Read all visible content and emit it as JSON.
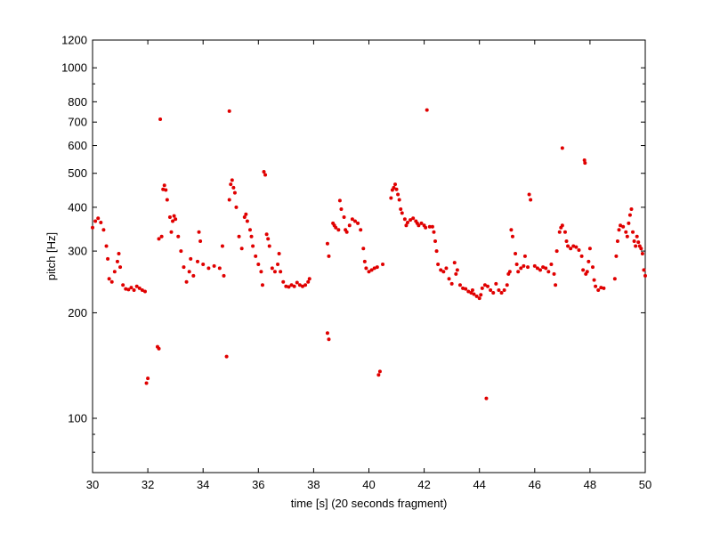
{
  "chart_data": {
    "type": "scatter",
    "title": "",
    "xlabel": "time [s] (20 seconds fragment)",
    "ylabel": "pitch [Hz]",
    "xlim": [
      30,
      50
    ],
    "ylim": [
      70,
      1200
    ],
    "y_scale": "log",
    "grid": false,
    "marker_color": "#e00000",
    "x_ticks": [
      30,
      32,
      34,
      36,
      38,
      40,
      42,
      44,
      46,
      48,
      50
    ],
    "x_tick_labels": [
      "30",
      "32",
      "34",
      "36",
      "38",
      "40",
      "42",
      "44",
      "46",
      "48",
      "50"
    ],
    "y_ticks": [
      100,
      200,
      300,
      400,
      500,
      600,
      700,
      800,
      1000,
      1200
    ],
    "y_tick_labels": [
      "100",
      "200",
      "300",
      "400",
      "500",
      "600",
      "700",
      "800",
      "1000",
      "1200"
    ],
    "series": [
      {
        "values": [
          [
            30.0,
            350
          ],
          [
            30.1,
            365
          ],
          [
            30.2,
            372
          ],
          [
            30.3,
            362
          ],
          [
            30.4,
            345
          ],
          [
            30.5,
            310
          ],
          [
            30.55,
            285
          ],
          [
            30.6,
            250
          ],
          [
            30.7,
            245
          ],
          [
            30.8,
            262
          ],
          [
            30.9,
            280
          ],
          [
            30.95,
            295
          ],
          [
            31.0,
            270
          ],
          [
            31.1,
            240
          ],
          [
            31.2,
            234
          ],
          [
            31.3,
            233
          ],
          [
            31.4,
            236
          ],
          [
            31.5,
            232
          ],
          [
            31.6,
            238
          ],
          [
            31.7,
            235
          ],
          [
            31.8,
            232
          ],
          [
            31.9,
            230
          ],
          [
            31.95,
            126
          ],
          [
            32.0,
            130
          ],
          [
            32.35,
            160
          ],
          [
            32.4,
            158
          ],
          [
            32.4,
            325
          ],
          [
            32.5,
            330
          ],
          [
            32.55,
            450
          ],
          [
            32.6,
            462
          ],
          [
            32.65,
            448
          ],
          [
            32.7,
            420
          ],
          [
            32.8,
            375
          ],
          [
            32.85,
            340
          ],
          [
            32.9,
            365
          ],
          [
            32.95,
            378
          ],
          [
            33.0,
            370
          ],
          [
            33.1,
            330
          ],
          [
            33.2,
            300
          ],
          [
            33.3,
            270
          ],
          [
            33.4,
            245
          ],
          [
            33.5,
            262
          ],
          [
            33.55,
            285
          ],
          [
            33.65,
            255
          ],
          [
            33.8,
            280
          ],
          [
            33.85,
            340
          ],
          [
            33.9,
            320
          ],
          [
            34.0,
            275
          ],
          [
            34.2,
            268
          ],
          [
            34.4,
            272
          ],
          [
            34.6,
            268
          ],
          [
            34.7,
            310
          ],
          [
            34.75,
            255
          ],
          [
            34.85,
            150
          ],
          [
            34.95,
            752
          ],
          [
            34.95,
            420
          ],
          [
            35.0,
            465
          ],
          [
            35.05,
            478
          ],
          [
            35.1,
            455
          ],
          [
            35.15,
            440
          ],
          [
            35.2,
            400
          ],
          [
            35.3,
            330
          ],
          [
            35.4,
            305
          ],
          [
            35.5,
            375
          ],
          [
            35.55,
            382
          ],
          [
            35.6,
            365
          ],
          [
            35.7,
            345
          ],
          [
            35.75,
            330
          ],
          [
            35.8,
            310
          ],
          [
            35.9,
            290
          ],
          [
            36.0,
            275
          ],
          [
            36.1,
            262
          ],
          [
            36.15,
            240
          ],
          [
            36.2,
            505
          ],
          [
            36.25,
            495
          ],
          [
            36.3,
            335
          ],
          [
            36.35,
            325
          ],
          [
            36.4,
            310
          ],
          [
            36.5,
            268
          ],
          [
            36.6,
            262
          ],
          [
            36.7,
            275
          ],
          [
            36.75,
            295
          ],
          [
            36.8,
            262
          ],
          [
            36.9,
            245
          ],
          [
            37.0,
            238
          ],
          [
            37.1,
            237
          ],
          [
            37.2,
            240
          ],
          [
            37.3,
            238
          ],
          [
            37.4,
            244
          ],
          [
            37.5,
            240
          ],
          [
            37.6,
            238
          ],
          [
            37.7,
            240
          ],
          [
            37.8,
            245
          ],
          [
            37.85,
            250
          ],
          [
            38.5,
            175
          ],
          [
            38.55,
            168
          ],
          [
            38.5,
            315
          ],
          [
            38.55,
            290
          ],
          [
            38.7,
            360
          ],
          [
            38.75,
            355
          ],
          [
            38.8,
            350
          ],
          [
            38.9,
            345
          ],
          [
            38.95,
            418
          ],
          [
            39.0,
            395
          ],
          [
            39.1,
            375
          ],
          [
            39.15,
            345
          ],
          [
            39.2,
            340
          ],
          [
            39.3,
            355
          ],
          [
            39.4,
            370
          ],
          [
            39.5,
            365
          ],
          [
            39.6,
            360
          ],
          [
            39.7,
            345
          ],
          [
            39.8,
            305
          ],
          [
            39.85,
            280
          ],
          [
            39.9,
            268
          ],
          [
            40.0,
            262
          ],
          [
            40.1,
            265
          ],
          [
            40.2,
            268
          ],
          [
            40.3,
            270
          ],
          [
            40.35,
            133
          ],
          [
            40.4,
            136
          ],
          [
            40.5,
            275
          ],
          [
            40.8,
            425
          ],
          [
            40.85,
            448
          ],
          [
            40.9,
            455
          ],
          [
            40.95,
            465
          ],
          [
            41.0,
            450
          ],
          [
            41.05,
            435
          ],
          [
            41.1,
            420
          ],
          [
            41.15,
            395
          ],
          [
            41.2,
            385
          ],
          [
            41.3,
            370
          ],
          [
            41.35,
            355
          ],
          [
            41.4,
            362
          ],
          [
            41.5,
            368
          ],
          [
            41.6,
            372
          ],
          [
            41.7,
            365
          ],
          [
            41.75,
            360
          ],
          [
            41.8,
            355
          ],
          [
            41.9,
            360
          ],
          [
            42.0,
            355
          ],
          [
            42.05,
            350
          ],
          [
            42.1,
            758
          ],
          [
            42.2,
            352
          ],
          [
            42.3,
            352
          ],
          [
            42.35,
            340
          ],
          [
            42.4,
            320
          ],
          [
            42.45,
            300
          ],
          [
            42.5,
            275
          ],
          [
            42.6,
            265
          ],
          [
            42.7,
            262
          ],
          [
            42.8,
            268
          ],
          [
            42.9,
            250
          ],
          [
            43.0,
            242
          ],
          [
            43.1,
            278
          ],
          [
            43.15,
            258
          ],
          [
            43.2,
            265
          ],
          [
            43.3,
            240
          ],
          [
            43.4,
            235
          ],
          [
            43.5,
            234
          ],
          [
            43.6,
            230
          ],
          [
            43.7,
            228
          ],
          [
            43.75,
            232
          ],
          [
            43.8,
            226
          ],
          [
            43.9,
            223
          ],
          [
            44.0,
            220
          ],
          [
            44.05,
            225
          ],
          [
            44.1,
            235
          ],
          [
            44.2,
            240
          ],
          [
            44.25,
            114
          ],
          [
            44.3,
            238
          ],
          [
            44.4,
            232
          ],
          [
            44.5,
            228
          ],
          [
            44.6,
            242
          ],
          [
            44.7,
            232
          ],
          [
            44.8,
            228
          ],
          [
            44.9,
            232
          ],
          [
            45.0,
            240
          ],
          [
            45.05,
            258
          ],
          [
            45.1,
            262
          ],
          [
            45.15,
            345
          ],
          [
            45.2,
            330
          ],
          [
            45.3,
            295
          ],
          [
            45.35,
            275
          ],
          [
            45.4,
            262
          ],
          [
            45.5,
            268
          ],
          [
            45.6,
            272
          ],
          [
            45.65,
            290
          ],
          [
            45.75,
            270
          ],
          [
            45.8,
            435
          ],
          [
            45.85,
            420
          ],
          [
            46.0,
            272
          ],
          [
            46.1,
            268
          ],
          [
            46.2,
            265
          ],
          [
            46.3,
            270
          ],
          [
            46.4,
            268
          ],
          [
            46.5,
            262
          ],
          [
            46.6,
            275
          ],
          [
            46.7,
            258
          ],
          [
            46.75,
            240
          ],
          [
            46.8,
            300
          ],
          [
            46.9,
            340
          ],
          [
            46.95,
            350
          ],
          [
            47.0,
            590
          ],
          [
            47.0,
            355
          ],
          [
            47.1,
            340
          ],
          [
            47.15,
            320
          ],
          [
            47.2,
            310
          ],
          [
            47.3,
            305
          ],
          [
            47.4,
            310
          ],
          [
            47.5,
            308
          ],
          [
            47.6,
            302
          ],
          [
            47.7,
            290
          ],
          [
            47.75,
            265
          ],
          [
            47.8,
            545
          ],
          [
            47.82,
            535
          ],
          [
            47.85,
            258
          ],
          [
            47.9,
            262
          ],
          [
            47.95,
            280
          ],
          [
            48.0,
            305
          ],
          [
            48.1,
            270
          ],
          [
            48.15,
            248
          ],
          [
            48.2,
            238
          ],
          [
            48.3,
            232
          ],
          [
            48.4,
            236
          ],
          [
            48.5,
            235
          ],
          [
            48.9,
            250
          ],
          [
            48.95,
            290
          ],
          [
            49.0,
            320
          ],
          [
            49.05,
            345
          ],
          [
            49.1,
            355
          ],
          [
            49.2,
            352
          ],
          [
            49.3,
            340
          ],
          [
            49.35,
            330
          ],
          [
            49.4,
            360
          ],
          [
            49.45,
            380
          ],
          [
            49.5,
            395
          ],
          [
            49.55,
            340
          ],
          [
            49.6,
            320
          ],
          [
            49.65,
            310
          ],
          [
            49.7,
            330
          ],
          [
            49.75,
            318
          ],
          [
            49.8,
            310
          ],
          [
            49.85,
            305
          ],
          [
            49.9,
            295
          ],
          [
            49.95,
            265
          ],
          [
            50.0,
            255
          ],
          [
            32.45,
            713
          ]
        ]
      }
    ]
  }
}
